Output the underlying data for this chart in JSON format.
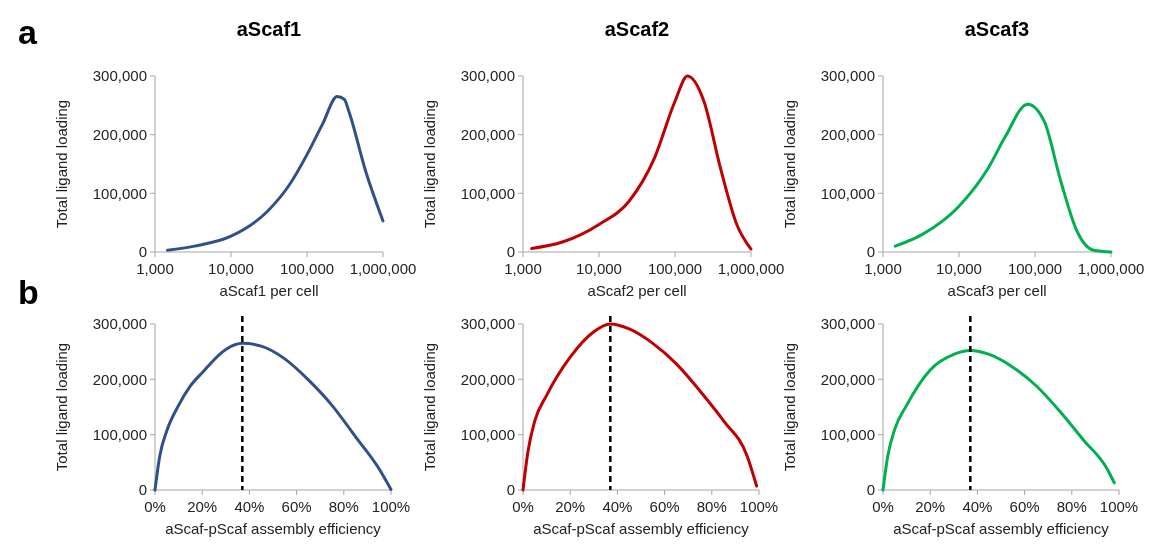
{
  "chart_data": [
    {
      "type": "line",
      "title": "aScaf1",
      "xlabel": "aScaf1 per cell",
      "ylabel": "Total ligand loading",
      "annotations": [
        "a"
      ],
      "log": "x",
      "xlim": [
        1000,
        1000000
      ],
      "xticks": [
        {
          "value": 1000,
          "label": "1,000"
        },
        {
          "value": 10000,
          "label": "10,000"
        },
        {
          "value": 100000,
          "label": "100,000"
        },
        {
          "value": 1000000,
          "label": "1,000,000"
        }
      ],
      "ylim": [
        0,
        300000
      ],
      "yticks": [
        {
          "value": 0,
          "label": "0"
        },
        {
          "value": 100000,
          "label": "100,000"
        },
        {
          "value": 200000,
          "label": "200,000"
        },
        {
          "value": 300000,
          "label": "300,000"
        }
      ],
      "series": [
        {
          "color": "#2f5188",
          "x": [
            1460,
            3300,
            10000,
            30000,
            59000,
            100000,
            160000,
            250000,
            310000,
            355000,
            590000,
            1000000
          ],
          "values": [
            3000,
            10000,
            27000,
            69000,
            115000,
            166000,
            218000,
            265000,
            260000,
            240000,
            138000,
            53000
          ]
        }
      ]
    },
    {
      "type": "line",
      "title": "aScaf2",
      "xlabel": "aScaf2 per cell",
      "ylabel": "Total ligand loading",
      "log": "x",
      "xlim": [
        1000,
        1000000
      ],
      "xticks": [
        {
          "value": 1000,
          "label": "1,000"
        },
        {
          "value": 10000,
          "label": "10,000"
        },
        {
          "value": 100000,
          "label": "100,000"
        },
        {
          "value": 1000000,
          "label": "1,000,000"
        }
      ],
      "ylim": [
        0,
        300000
      ],
      "yticks": [
        {
          "value": 0,
          "label": "0"
        },
        {
          "value": 100000,
          "label": "100,000"
        },
        {
          "value": 200000,
          "label": "200,000"
        },
        {
          "value": 300000,
          "label": "300,000"
        }
      ],
      "series": [
        {
          "color": "#c00000",
          "x": [
            1300,
            3300,
            10000,
            25000,
            54000,
            100000,
            146000,
            240000,
            395000,
            650000,
            1000000
          ],
          "values": [
            6000,
            17000,
            47000,
            87000,
            161000,
            257000,
            300000,
            257000,
            144000,
            47000,
            5000
          ]
        }
      ]
    },
    {
      "type": "line",
      "title": "aScaf3",
      "xlabel": "aScaf3 per cell",
      "ylabel": "Total ligand loading",
      "log": "x",
      "xlim": [
        1000,
        1000000
      ],
      "xticks": [
        {
          "value": 1000,
          "label": "1,000"
        },
        {
          "value": 10000,
          "label": "10,000"
        },
        {
          "value": 100000,
          "label": "100,000"
        },
        {
          "value": 1000000,
          "label": "1,000,000"
        }
      ],
      "ylim": [
        0,
        300000
      ],
      "yticks": [
        {
          "value": 0,
          "label": "0"
        },
        {
          "value": 100000,
          "label": "100,000"
        },
        {
          "value": 200000,
          "label": "200,000"
        },
        {
          "value": 300000,
          "label": "300,000"
        }
      ],
      "series": [
        {
          "color": "#00b050",
          "x": [
            1450,
            3300,
            10000,
            24500,
            40000,
            80000,
            132000,
            218000,
            355000,
            590000,
            1000000
          ],
          "values": [
            10000,
            30000,
            78000,
            144000,
            195000,
            252000,
            223000,
            121000,
            36000,
            3000,
            0
          ]
        }
      ]
    },
    {
      "type": "line",
      "xlabel": "aScaf-pScaf assembly efficiency",
      "ylabel": "Total ligand loading",
      "annotations": [
        "b"
      ],
      "xlim": [
        0,
        100
      ],
      "xticks": [
        {
          "value": 0,
          "label": "0%"
        },
        {
          "value": 20,
          "label": "20%"
        },
        {
          "value": 40,
          "label": "40%"
        },
        {
          "value": 60,
          "label": "60%"
        },
        {
          "value": 80,
          "label": "80%"
        },
        {
          "value": 100,
          "label": "100%"
        }
      ],
      "ylim": [
        0,
        300000
      ],
      "yticks": [
        {
          "value": 0,
          "label": "0"
        },
        {
          "value": 100000,
          "label": "100,000"
        },
        {
          "value": 200000,
          "label": "200,000"
        },
        {
          "value": 300000,
          "label": "300,000"
        }
      ],
      "ref_lines": [
        {
          "axis": "x",
          "value": 37,
          "color": "#000000",
          "line_style": "dashed"
        }
      ],
      "series": [
        {
          "color": "#2f5188",
          "x": [
            0,
            2,
            5,
            10,
            15,
            20,
            30,
            37,
            45,
            55,
            65,
            75,
            85,
            95,
            100
          ],
          "values": [
            0,
            61000,
            107000,
            153000,
            188000,
            212000,
            254000,
            265000,
            260000,
            237000,
            199000,
            153000,
            96000,
            38000,
            1000
          ]
        }
      ]
    },
    {
      "type": "line",
      "xlabel": "aScaf-pScaf assembly efficiency",
      "ylabel": "Total ligand loading",
      "xlim": [
        0,
        100
      ],
      "xticks": [
        {
          "value": 0,
          "label": "0%"
        },
        {
          "value": 20,
          "label": "20%"
        },
        {
          "value": 40,
          "label": "40%"
        },
        {
          "value": 60,
          "label": "60%"
        },
        {
          "value": 80,
          "label": "80%"
        },
        {
          "value": 100,
          "label": "100%"
        }
      ],
      "ylim": [
        0,
        300000
      ],
      "yticks": [
        {
          "value": 0,
          "label": "0"
        },
        {
          "value": 100000,
          "label": "100,000"
        },
        {
          "value": 200000,
          "label": "200,000"
        },
        {
          "value": 300000,
          "label": "300,000"
        }
      ],
      "ref_lines": [
        {
          "axis": "x",
          "value": 37,
          "color": "#000000",
          "line_style": "dashed"
        }
      ],
      "series": [
        {
          "color": "#c00000",
          "x": [
            0,
            2,
            5,
            10,
            20,
            30,
            37,
            45,
            55,
            65,
            75,
            85,
            95,
            99
          ],
          "values": [
            0,
            67000,
            125000,
            171000,
            240000,
            286000,
            300000,
            291000,
            265000,
            228000,
            179000,
            125000,
            61000,
            7000
          ]
        }
      ]
    },
    {
      "type": "line",
      "xlabel": "aScaf-pScaf assembly efficiency",
      "ylabel": "Total ligand loading",
      "xlim": [
        0,
        100
      ],
      "xticks": [
        {
          "value": 0,
          "label": "0%"
        },
        {
          "value": 20,
          "label": "20%"
        },
        {
          "value": 40,
          "label": "40%"
        },
        {
          "value": 60,
          "label": "60%"
        },
        {
          "value": 80,
          "label": "80%"
        },
        {
          "value": 100,
          "label": "100%"
        }
      ],
      "ylim": [
        0,
        300000
      ],
      "yticks": [
        {
          "value": 0,
          "label": "0"
        },
        {
          "value": 100000,
          "label": "100,000"
        },
        {
          "value": 200000,
          "label": "200,000"
        },
        {
          "value": 300000,
          "label": "300,000"
        }
      ],
      "ref_lines": [
        {
          "axis": "x",
          "value": 37,
          "color": "#000000",
          "line_style": "dashed"
        }
      ],
      "series": [
        {
          "color": "#00b050",
          "x": [
            0,
            2,
            5,
            10,
            20,
            30,
            37,
            45,
            55,
            65,
            75,
            85,
            95,
            98
          ],
          "values": [
            0,
            61000,
            110000,
            153000,
            217000,
            245000,
            252000,
            245000,
            222000,
            188000,
            142000,
            90000,
            38000,
            13000
          ]
        }
      ]
    }
  ]
}
